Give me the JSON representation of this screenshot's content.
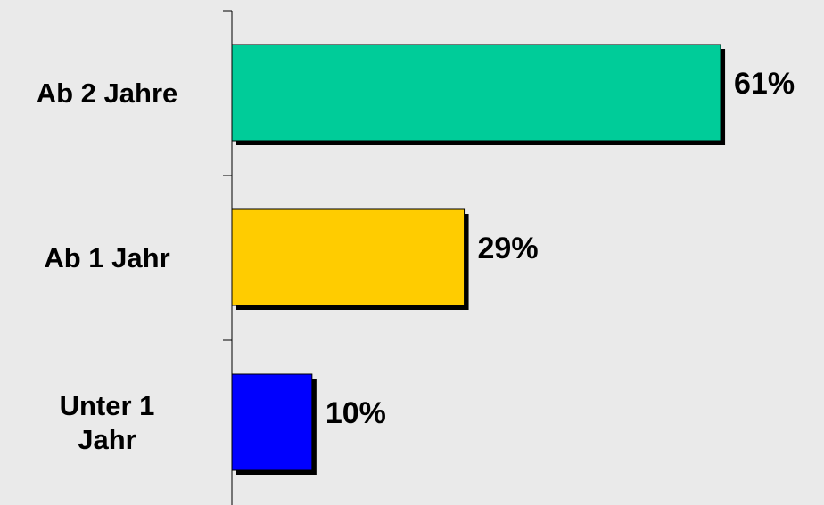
{
  "chart_data": {
    "type": "bar",
    "orientation": "horizontal",
    "categories": [
      "Ab 2 Jahre",
      "Ab 1 Jahr",
      "Unter 1 Jahr"
    ],
    "category_lines": [
      [
        "Ab 2 Jahre"
      ],
      [
        "Ab 1 Jahr"
      ],
      [
        "Unter 1",
        "Jahr"
      ]
    ],
    "values": [
      61,
      29,
      10
    ],
    "value_labels": [
      "61%",
      "29%",
      "10%"
    ],
    "bar_colors": [
      "#00cc99",
      "#ffcc00",
      "#0000ff"
    ],
    "xlim": [
      0,
      65
    ],
    "grid": false,
    "legend": "none"
  },
  "colors": {
    "background": "#eaeaea",
    "axis": "#000000",
    "bar_shadow": "#000000"
  }
}
